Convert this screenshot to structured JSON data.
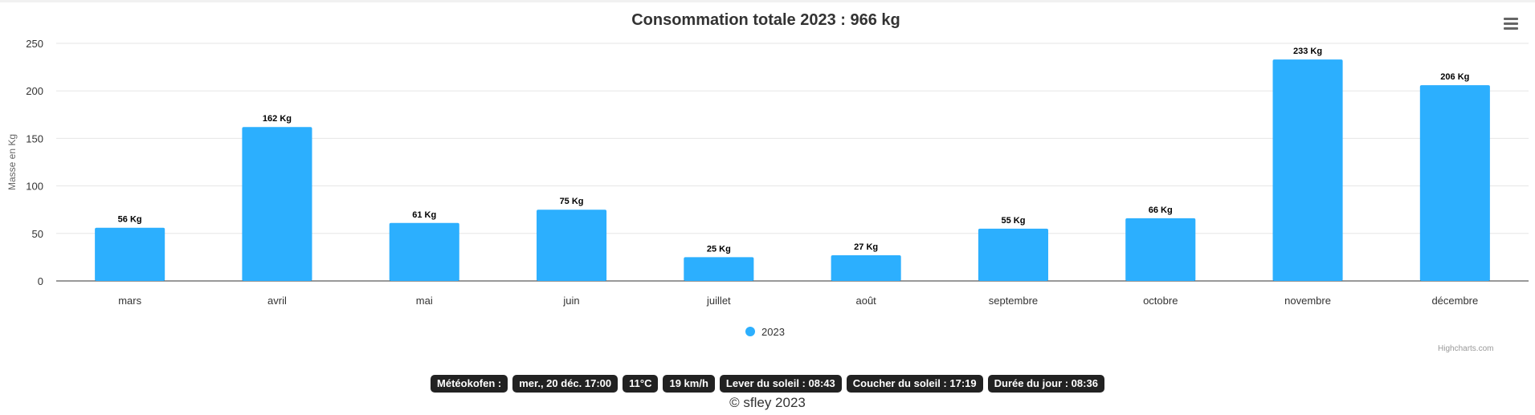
{
  "chart_data": {
    "type": "bar",
    "title": "Consommation totale 2023 : 966 kg",
    "ylabel": "Masse en Kg",
    "xlabel": "",
    "categories": [
      "mars",
      "avril",
      "mai",
      "juin",
      "juillet",
      "août",
      "septembre",
      "octobre",
      "novembre",
      "décembre"
    ],
    "series": [
      {
        "name": "2023",
        "color": "#2caffe",
        "values": [
          56,
          162,
          61,
          75,
          25,
          27,
          55,
          66,
          233,
          206
        ],
        "labels": [
          "56 Kg",
          "162 Kg",
          "61 Kg",
          "75 Kg",
          "25 Kg",
          "27 Kg",
          "55 Kg",
          "66 Kg",
          "233 Kg",
          "206 Kg"
        ]
      }
    ],
    "ylim": [
      0,
      250
    ],
    "yticks": [
      "0",
      "50",
      "100",
      "150",
      "200",
      "250"
    ],
    "grid": true,
    "legend": "bottom-center"
  },
  "credits": "Highcharts.com",
  "footer": {
    "badges": [
      "Météokofen :",
      "mer., 20 déc. 17:00",
      "11°C",
      "19 km/h",
      "Lever du soleil : 08:43",
      "Coucher du soleil : 17:19",
      "Durée du jour : 08:36"
    ],
    "copyright": "© sfley 2023"
  }
}
